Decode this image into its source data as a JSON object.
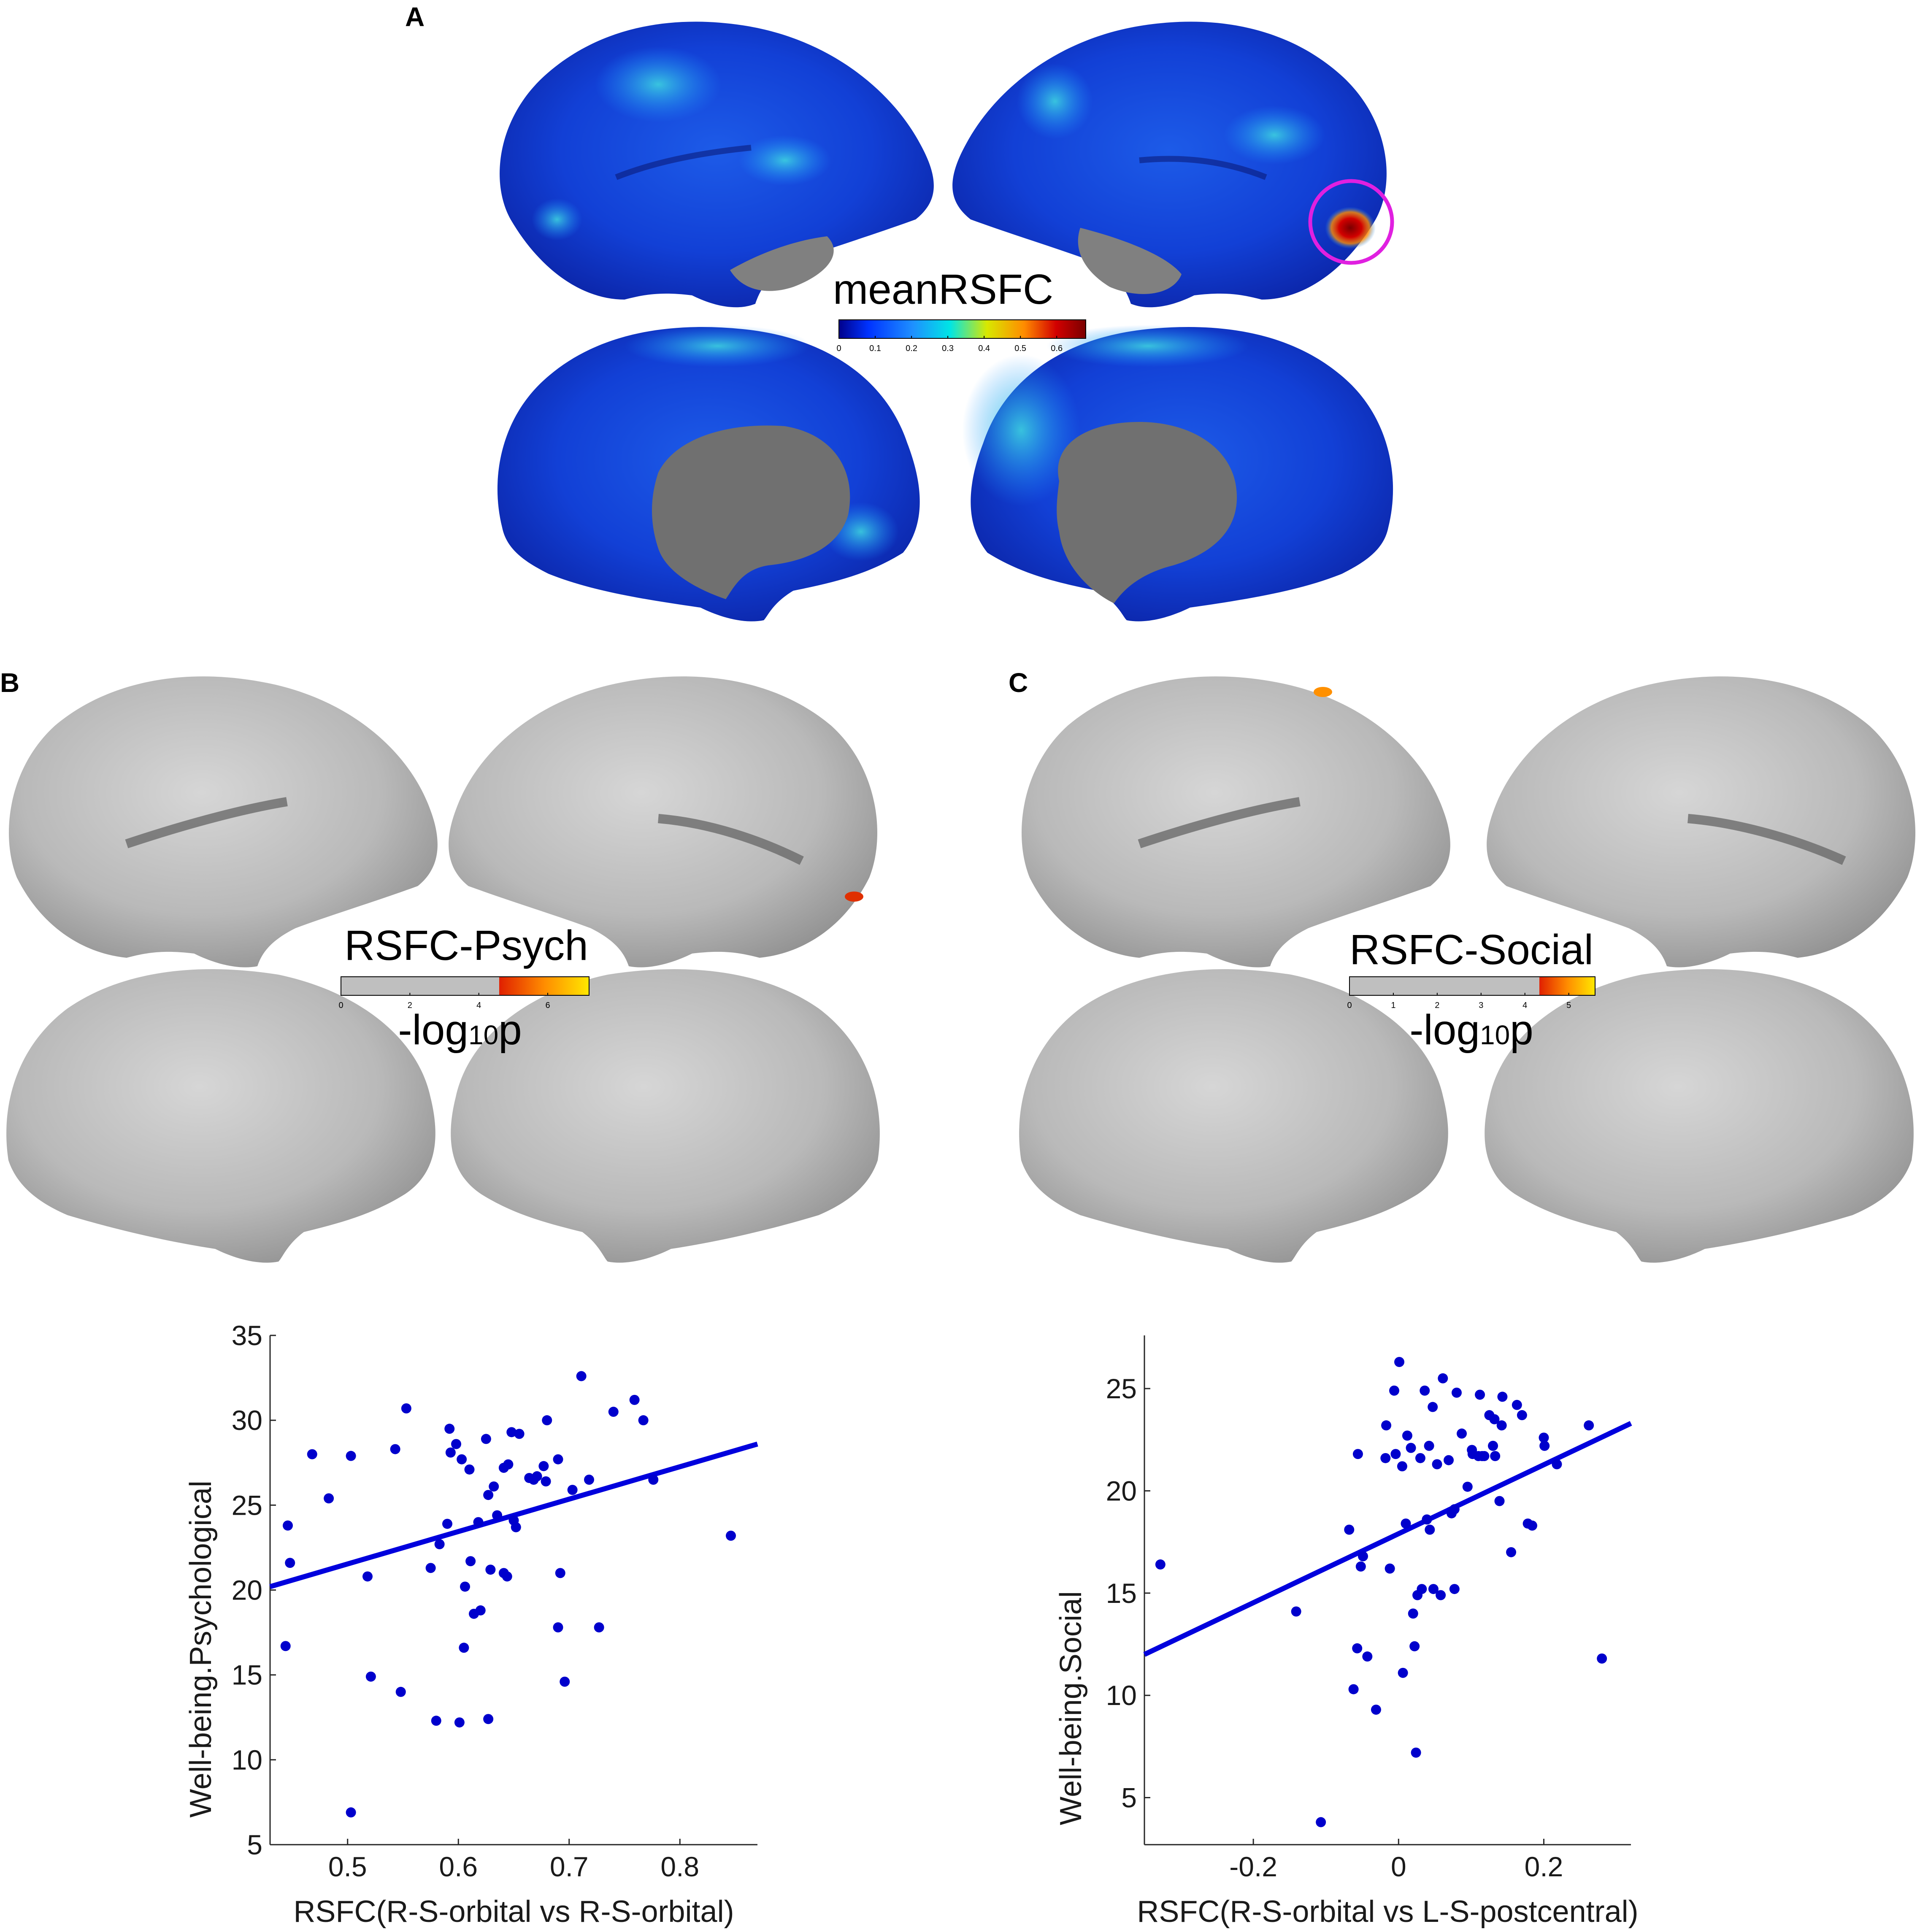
{
  "panels": {
    "a": {
      "label": "A",
      "colorbar": {
        "title": "meanRSFC",
        "ticks": [
          "0",
          "0.1",
          "0.2",
          "0.3",
          "0.4",
          "0.5",
          "0.6"
        ],
        "colors": [
          "#00008b",
          "#0033ff",
          "#1e90ff",
          "#00e5e5",
          "#d8e800",
          "#ff8c00",
          "#d20000",
          "#7a0000"
        ]
      }
    },
    "b": {
      "label": "B",
      "colorbar": {
        "title": "RSFC-Psych",
        "ticks": [
          "0",
          "2",
          "4",
          "6"
        ],
        "unit_label": "-log",
        "unit_sub": "10",
        "unit_tail": "p"
      }
    },
    "c": {
      "label": "C",
      "colorbar": {
        "title": "RSFC-Social",
        "ticks": [
          "0",
          "1",
          "2",
          "3",
          "4",
          "5"
        ],
        "unit_label": "-log",
        "unit_sub": "10",
        "unit_tail": "p"
      }
    }
  },
  "chart_data": [
    {
      "type": "scatter",
      "xlabel": "RSFC(R-S-orbital vs R-S-orbital)",
      "ylabel": "Well-being.Psychological",
      "xlim": [
        0.43,
        0.87
      ],
      "ylim": [
        5,
        35
      ],
      "xticks": [
        0.5,
        0.6,
        0.7,
        0.8
      ],
      "yticks": [
        5,
        10,
        15,
        20,
        25,
        30,
        35
      ],
      "xtick_labels": [
        "0.5",
        "0.6",
        "0.7",
        "0.8"
      ],
      "ytick_labels": [
        "5",
        "10",
        "15",
        "20",
        "25",
        "30",
        "35"
      ],
      "fit_line": [
        [
          0.43,
          20.2
        ],
        [
          0.87,
          28.6
        ]
      ],
      "color": "#0000cc",
      "points": [
        [
          0.444,
          16.7
        ],
        [
          0.446,
          23.8
        ],
        [
          0.448,
          21.6
        ],
        [
          0.468,
          28.0
        ],
        [
          0.483,
          25.4
        ],
        [
          0.503,
          27.9
        ],
        [
          0.503,
          6.9
        ],
        [
          0.518,
          20.8
        ],
        [
          0.521,
          14.9
        ],
        [
          0.543,
          28.3
        ],
        [
          0.548,
          14.0
        ],
        [
          0.553,
          30.7
        ],
        [
          0.575,
          21.3
        ],
        [
          0.58,
          12.3
        ],
        [
          0.583,
          22.7
        ],
        [
          0.59,
          23.9
        ],
        [
          0.592,
          29.5
        ],
        [
          0.593,
          28.1
        ],
        [
          0.598,
          28.6
        ],
        [
          0.601,
          12.2
        ],
        [
          0.603,
          27.7
        ],
        [
          0.605,
          16.6
        ],
        [
          0.606,
          20.2
        ],
        [
          0.61,
          27.1
        ],
        [
          0.611,
          21.7
        ],
        [
          0.614,
          18.6
        ],
        [
          0.618,
          24.0
        ],
        [
          0.62,
          18.8
        ],
        [
          0.625,
          28.9
        ],
        [
          0.627,
          12.4
        ],
        [
          0.627,
          25.6
        ],
        [
          0.629,
          21.2
        ],
        [
          0.632,
          26.1
        ],
        [
          0.635,
          24.4
        ],
        [
          0.641,
          27.2
        ],
        [
          0.641,
          21.0
        ],
        [
          0.644,
          20.8
        ],
        [
          0.645,
          27.4
        ],
        [
          0.648,
          29.3
        ],
        [
          0.652,
          23.7
        ],
        [
          0.655,
          29.2
        ],
        [
          0.65,
          24.1
        ],
        [
          0.664,
          26.6
        ],
        [
          0.668,
          26.5
        ],
        [
          0.671,
          26.7
        ],
        [
          0.677,
          27.3
        ],
        [
          0.68,
          30.0
        ],
        [
          0.679,
          26.4
        ],
        [
          0.69,
          27.7
        ],
        [
          0.69,
          17.8
        ],
        [
          0.692,
          21.0
        ],
        [
          0.696,
          14.6
        ],
        [
          0.703,
          25.9
        ],
        [
          0.711,
          32.6
        ],
        [
          0.718,
          26.5
        ],
        [
          0.727,
          17.8
        ],
        [
          0.74,
          30.5
        ],
        [
          0.759,
          31.2
        ],
        [
          0.767,
          30.0
        ],
        [
          0.776,
          26.5
        ],
        [
          0.846,
          23.2
        ]
      ]
    },
    {
      "type": "scatter",
      "xlabel": "RSFC(R-S-orbital vs L-S-postcentral)",
      "ylabel": "Well-being.Social",
      "xlim": [
        -0.35,
        0.32
      ],
      "ylim": [
        2.7,
        27.6
      ],
      "xticks": [
        -0.2,
        0,
        0.2
      ],
      "yticks": [
        5,
        10,
        15,
        20,
        25
      ],
      "xtick_labels": [
        "-0.2",
        "0",
        "0.2"
      ],
      "ytick_labels": [
        "5",
        "10",
        "15",
        "20",
        "25"
      ],
      "fit_line": [
        [
          -0.35,
          12.0
        ],
        [
          0.32,
          23.3
        ]
      ],
      "color": "#0000cc",
      "points": [
        [
          -0.328,
          16.4
        ],
        [
          -0.141,
          14.1
        ],
        [
          -0.107,
          3.8
        ],
        [
          -0.068,
          18.1
        ],
        [
          -0.062,
          10.3
        ],
        [
          -0.057,
          12.3
        ],
        [
          -0.056,
          21.8
        ],
        [
          -0.052,
          16.3
        ],
        [
          -0.049,
          16.8
        ],
        [
          -0.043,
          11.9
        ],
        [
          -0.031,
          9.3
        ],
        [
          -0.018,
          21.6
        ],
        [
          -0.017,
          23.2
        ],
        [
          -0.012,
          16.2
        ],
        [
          -0.006,
          24.9
        ],
        [
          -0.004,
          21.8
        ],
        [
          0.001,
          26.3
        ],
        [
          0.005,
          21.2
        ],
        [
          0.006,
          11.1
        ],
        [
          0.01,
          18.4
        ],
        [
          0.012,
          22.7
        ],
        [
          0.017,
          22.1
        ],
        [
          0.02,
          14.0
        ],
        [
          0.022,
          12.4
        ],
        [
          0.024,
          7.2
        ],
        [
          0.026,
          14.9
        ],
        [
          0.03,
          21.6
        ],
        [
          0.032,
          15.2
        ],
        [
          0.036,
          24.9
        ],
        [
          0.039,
          18.6
        ],
        [
          0.042,
          22.2
        ],
        [
          0.043,
          18.1
        ],
        [
          0.047,
          24.1
        ],
        [
          0.048,
          15.2
        ],
        [
          0.053,
          21.3
        ],
        [
          0.058,
          14.9
        ],
        [
          0.061,
          25.5
        ],
        [
          0.069,
          21.5
        ],
        [
          0.073,
          18.9
        ],
        [
          0.077,
          19.1
        ],
        [
          0.077,
          15.2
        ],
        [
          0.08,
          24.8
        ],
        [
          0.087,
          22.8
        ],
        [
          0.095,
          20.2
        ],
        [
          0.101,
          22.0
        ],
        [
          0.102,
          21.8
        ],
        [
          0.11,
          21.7
        ],
        [
          0.112,
          24.7
        ],
        [
          0.115,
          21.7
        ],
        [
          0.118,
          21.7
        ],
        [
          0.125,
          23.7
        ],
        [
          0.13,
          22.2
        ],
        [
          0.132,
          23.5
        ],
        [
          0.133,
          21.7
        ],
        [
          0.139,
          19.5
        ],
        [
          0.142,
          23.2
        ],
        [
          0.143,
          24.6
        ],
        [
          0.155,
          17.0
        ],
        [
          0.163,
          24.2
        ],
        [
          0.17,
          23.7
        ],
        [
          0.178,
          18.4
        ],
        [
          0.184,
          18.3
        ],
        [
          0.2,
          22.6
        ],
        [
          0.201,
          22.2
        ],
        [
          0.218,
          21.3
        ],
        [
          0.262,
          23.2
        ],
        [
          0.28,
          11.8
        ]
      ]
    }
  ]
}
